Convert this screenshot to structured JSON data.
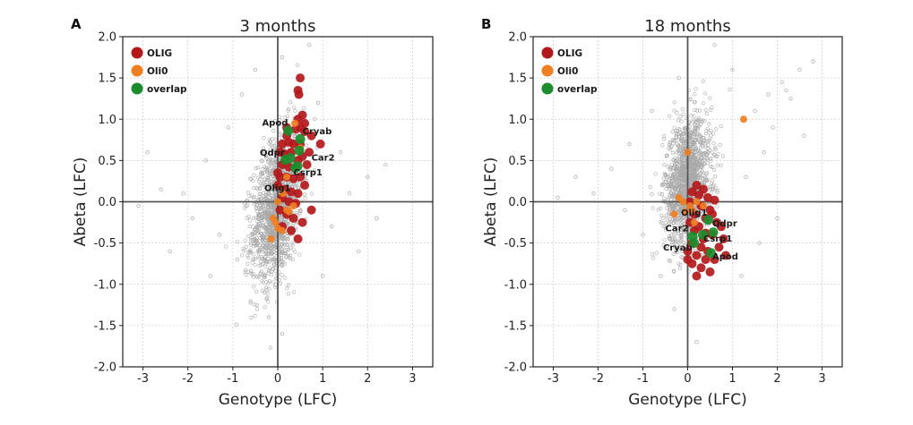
{
  "colors": {
    "OLIG": "#b3191b",
    "Oli0": "#ef7f22",
    "overlap": "#1c8c2c",
    "background": "#a9a9a9",
    "grid": "#cfcfcf",
    "zero_line": "#555555"
  },
  "chart_data": [
    {
      "type": "scatter",
      "panel_label": "A",
      "title": "3 months",
      "xlabel": "Genotype (LFC)",
      "ylabel": "Abeta (LFC)",
      "xlim": [
        -3.45,
        3.45
      ],
      "ylim": [
        -2.0,
        2.0
      ],
      "xticks": [
        "-3",
        "-2",
        "-1",
        "0",
        "1",
        "2",
        "3"
      ],
      "yticks": [
        "2.0",
        "1.5",
        "1.0",
        "0.5",
        "0.0",
        "-0.5",
        "-1.0",
        "-1.5",
        "-2.0"
      ],
      "grid": true,
      "legend": {
        "placement": "top-left",
        "entries": [
          "OLIG",
          "Oli0",
          "overlap"
        ]
      },
      "background_points": [
        [
          -2.9,
          0.6
        ],
        [
          -2.6,
          0.15
        ],
        [
          -3.1,
          -0.05
        ],
        [
          -2.1,
          0.1
        ],
        [
          -1.9,
          -0.2
        ],
        [
          -1.6,
          0.5
        ],
        [
          -1.3,
          -0.4
        ],
        [
          -1.1,
          0.9
        ],
        [
          -0.8,
          1.3
        ],
        [
          -0.5,
          1.6
        ],
        [
          -0.3,
          -1.1
        ],
        [
          -0.2,
          -1.4
        ],
        [
          0.1,
          -1.6
        ],
        [
          0.1,
          1.75
        ],
        [
          0.7,
          1.9
        ],
        [
          1.2,
          -0.3
        ],
        [
          1.4,
          0.6
        ],
        [
          1.6,
          0.1
        ],
        [
          2.0,
          0.3
        ],
        [
          2.4,
          0.45
        ],
        [
          2.2,
          -0.2
        ],
        [
          1.8,
          -0.6
        ],
        [
          -1.5,
          -0.9
        ],
        [
          -0.9,
          -0.7
        ],
        [
          0.9,
          1.2
        ],
        [
          1.0,
          -0.9
        ],
        [
          -2.4,
          -0.6
        ]
      ],
      "series": [
        {
          "name": "OLIG",
          "points": [
            [
              0.5,
              1.5
            ],
            [
              0.45,
              1.35
            ],
            [
              0.47,
              1.3
            ],
            [
              0.55,
              1.05
            ],
            [
              0.45,
              1.0
            ],
            [
              0.6,
              0.95
            ],
            [
              0.5,
              0.9
            ],
            [
              0.4,
              0.88
            ],
            [
              0.2,
              0.8
            ],
            [
              0.1,
              0.7
            ],
            [
              0.25,
              0.72
            ],
            [
              0.35,
              0.7
            ],
            [
              0.6,
              0.85
            ],
            [
              0.7,
              0.6
            ],
            [
              0.95,
              0.7
            ],
            [
              0.55,
              0.55
            ],
            [
              0.05,
              0.6
            ],
            [
              0.15,
              0.58
            ],
            [
              0.3,
              0.6
            ],
            [
              0.45,
              0.5
            ],
            [
              0.65,
              0.45
            ],
            [
              0.1,
              0.45
            ],
            [
              0.25,
              0.42
            ],
            [
              0.05,
              0.3
            ],
            [
              0.2,
              0.3
            ],
            [
              0.35,
              0.28
            ],
            [
              0.5,
              0.3
            ],
            [
              0.0,
              0.2
            ],
            [
              0.15,
              0.15
            ],
            [
              0.3,
              0.12
            ],
            [
              0.45,
              0.1
            ],
            [
              0.1,
              0.05
            ],
            [
              0.25,
              0.0
            ],
            [
              0.4,
              -0.02
            ],
            [
              0.75,
              -0.1
            ],
            [
              0.05,
              -0.1
            ],
            [
              0.2,
              -0.15
            ],
            [
              0.35,
              -0.2
            ],
            [
              0.55,
              -0.25
            ],
            [
              0.1,
              -0.3
            ],
            [
              0.3,
              -0.35
            ],
            [
              0.45,
              -0.45
            ],
            [
              0.0,
              0.35
            ],
            [
              0.6,
              0.2
            ],
            [
              0.2,
              0.9
            ],
            [
              0.75,
              0.8
            ],
            [
              0.5,
              0.7
            ]
          ]
        },
        {
          "name": "Oli0",
          "points": [
            [
              0.38,
              0.95
            ],
            [
              0.5,
              0.65
            ],
            [
              0.2,
              0.3
            ],
            [
              0.12,
              0.1
            ],
            [
              0.0,
              0.0
            ],
            [
              -0.1,
              -0.2
            ],
            [
              0.25,
              -0.12
            ],
            [
              0.1,
              -0.35
            ],
            [
              0.0,
              -0.32
            ],
            [
              -0.05,
              -0.25
            ],
            [
              0.2,
              -0.1
            ],
            [
              -0.15,
              -0.45
            ],
            [
              0.35,
              -0.05
            ]
          ]
        },
        {
          "name": "overlap",
          "points": [
            [
              0.23,
              0.86
            ],
            [
              0.5,
              0.76
            ],
            [
              0.48,
              0.62
            ],
            [
              0.17,
              0.51
            ],
            [
              0.39,
              0.41
            ],
            [
              0.44,
              0.43
            ],
            [
              0.28,
              0.53
            ]
          ]
        }
      ],
      "annotations": [
        {
          "text": "Apod",
          "x": -0.35,
          "y": 0.92
        },
        {
          "text": "Cryab",
          "x": 0.55,
          "y": 0.82
        },
        {
          "text": "Car2",
          "x": 0.75,
          "y": 0.5
        },
        {
          "text": "Qdpr",
          "x": -0.4,
          "y": 0.56
        },
        {
          "text": "Csrp1",
          "x": 0.35,
          "y": 0.32
        },
        {
          "text": "Olig1",
          "x": -0.3,
          "y": 0.13
        }
      ]
    },
    {
      "type": "scatter",
      "panel_label": "B",
      "title": "18 months",
      "xlabel": "Genotype (LFC)",
      "ylabel": "Abeta (LFC)",
      "xlim": [
        -3.45,
        3.45
      ],
      "ylim": [
        -2.0,
        2.0
      ],
      "xticks": [
        "-3",
        "-2",
        "-1",
        "0",
        "1",
        "2",
        "3"
      ],
      "yticks": [
        "2.0",
        "1.5",
        "1.0",
        "0.5",
        "0.0",
        "-0.5",
        "-1.0",
        "-1.5",
        "-2.0"
      ],
      "grid": true,
      "legend": {
        "placement": "top-left",
        "entries": [
          "OLIG",
          "Oli0",
          "overlap"
        ]
      },
      "background_points": [
        [
          2.8,
          1.7
        ],
        [
          2.5,
          1.6
        ],
        [
          2.1,
          1.45
        ],
        [
          2.2,
          1.35
        ],
        [
          1.8,
          1.3
        ],
        [
          2.3,
          1.25
        ],
        [
          1.5,
          1.1
        ],
        [
          1.9,
          0.9
        ],
        [
          2.6,
          0.8
        ],
        [
          1.0,
          1.6
        ],
        [
          0.6,
          1.9
        ],
        [
          -0.2,
          1.5
        ],
        [
          -0.8,
          1.1
        ],
        [
          -1.3,
          0.7
        ],
        [
          -1.7,
          0.4
        ],
        [
          -2.1,
          0.1
        ],
        [
          -2.5,
          0.3
        ],
        [
          -2.9,
          0.05
        ],
        [
          -1.4,
          -0.1
        ],
        [
          -1.0,
          -0.4
        ],
        [
          -0.6,
          -0.9
        ],
        [
          -0.3,
          -1.3
        ],
        [
          0.2,
          -1.7
        ],
        [
          1.2,
          -0.9
        ],
        [
          1.6,
          -0.5
        ],
        [
          2.0,
          -0.2
        ],
        [
          1.3,
          0.3
        ],
        [
          1.7,
          0.6
        ]
      ],
      "series": [
        {
          "name": "OLIG",
          "points": [
            [
              0.2,
              0.2
            ],
            [
              0.35,
              0.15
            ],
            [
              0.1,
              0.12
            ],
            [
              0.25,
              0.08
            ],
            [
              0.45,
              0.05
            ],
            [
              0.6,
              0.02
            ],
            [
              0.05,
              0.0
            ],
            [
              0.3,
              -0.05
            ],
            [
              0.5,
              -0.1
            ],
            [
              0.15,
              -0.15
            ],
            [
              0.4,
              -0.2
            ],
            [
              0.65,
              -0.25
            ],
            [
              0.05,
              -0.25
            ],
            [
              0.25,
              -0.3
            ],
            [
              0.55,
              -0.4
            ],
            [
              0.8,
              -0.45
            ],
            [
              0.1,
              -0.5
            ],
            [
              0.3,
              -0.55
            ],
            [
              0.45,
              -0.6
            ],
            [
              0.7,
              -0.55
            ],
            [
              0.0,
              -0.6
            ],
            [
              0.2,
              -0.65
            ],
            [
              0.4,
              -0.7
            ],
            [
              0.6,
              -0.7
            ],
            [
              0.1,
              -0.75
            ],
            [
              0.3,
              -0.8
            ],
            [
              0.5,
              -0.85
            ],
            [
              0.0,
              -0.7
            ],
            [
              0.15,
              -0.35
            ],
            [
              0.35,
              -0.45
            ],
            [
              0.75,
              -0.3
            ],
            [
              0.55,
              -0.15
            ],
            [
              0.2,
              -0.9
            ],
            [
              0.4,
              -0.38
            ],
            [
              0.85,
              -0.65
            ]
          ]
        },
        {
          "name": "Oli0",
          "points": [
            [
              1.25,
              1.0
            ],
            [
              0.0,
              0.6
            ],
            [
              -0.2,
              0.05
            ],
            [
              -0.1,
              0.0
            ],
            [
              0.05,
              -0.05
            ],
            [
              0.2,
              0.0
            ],
            [
              0.35,
              -0.05
            ],
            [
              -0.3,
              -0.15
            ],
            [
              0.1,
              -0.1
            ],
            [
              -0.05,
              -0.12
            ],
            [
              0.15,
              -0.25
            ]
          ]
        },
        {
          "name": "overlap",
          "points": [
            [
              0.46,
              -0.22
            ],
            [
              0.57,
              -0.37
            ],
            [
              0.34,
              -0.4
            ],
            [
              0.11,
              -0.42
            ],
            [
              0.14,
              -0.5
            ],
            [
              0.52,
              -0.62
            ]
          ]
        }
      ],
      "annotations": [
        {
          "text": "Olig1",
          "x": -0.15,
          "y": -0.17
        },
        {
          "text": "Qdpr",
          "x": 0.55,
          "y": -0.3
        },
        {
          "text": "Car2",
          "x": -0.5,
          "y": -0.36
        },
        {
          "text": "Csrp1",
          "x": 0.35,
          "y": -0.48
        },
        {
          "text": "Cryab",
          "x": -0.55,
          "y": -0.59
        },
        {
          "text": "Apod",
          "x": 0.55,
          "y": -0.7
        }
      ]
    }
  ]
}
